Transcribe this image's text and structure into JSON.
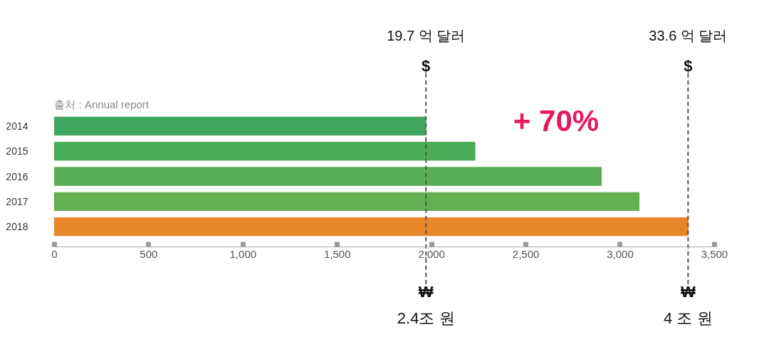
{
  "chart_data": {
    "type": "bar",
    "orientation": "horizontal",
    "categories": [
      "2014",
      "2015",
      "2016",
      "2017",
      "2018"
    ],
    "values": [
      1970,
      2230,
      2900,
      3100,
      3360
    ],
    "colors": [
      "#3fa85e",
      "#4aac58",
      "#5aae55",
      "#62b052",
      "#e8862a"
    ],
    "xlim": [
      0,
      3500
    ],
    "xticks": [
      0,
      {
        "value": 500,
        "label": "500"
      },
      {
        "value": 1000,
        "label": "1,000"
      },
      {
        "value": 1500,
        "label": "1,500"
      },
      {
        "value": 2000,
        "label": "2,000"
      },
      {
        "value": 2500,
        "label": "2,500"
      },
      {
        "value": 3000,
        "label": "3,000"
      },
      {
        "value": 3500,
        "label": "3,500"
      }
    ],
    "grid": false,
    "ref_lines": [
      {
        "axis": "x",
        "value": 1970,
        "label": "19.7 억 달러",
        "color": "#555555",
        "line_style": "dashed"
      },
      {
        "axis": "x",
        "value": 3360,
        "label": "33.6 억 달러",
        "color": "#555555",
        "line_style": "dashed"
      }
    ],
    "annotations": [
      "출처 : Annual report",
      "+ 70%",
      "$",
      "₩",
      "2.4조 원",
      "$",
      "₩",
      "4 조 원"
    ]
  }
}
